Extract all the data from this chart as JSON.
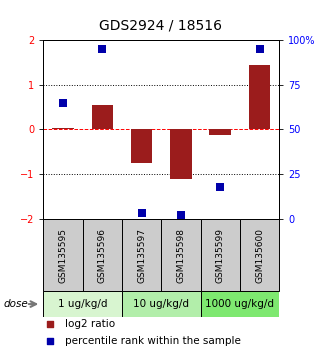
{
  "title": "GDS2924 / 18516",
  "samples": [
    "GSM135595",
    "GSM135596",
    "GSM135597",
    "GSM135598",
    "GSM135599",
    "GSM135600"
  ],
  "log2_ratio": [
    0.02,
    0.55,
    -0.75,
    -1.1,
    -0.12,
    1.45
  ],
  "percentile_rank": [
    65,
    95,
    3,
    2,
    18,
    95
  ],
  "groups": [
    {
      "label": "1 ug/kg/d",
      "samples": [
        0,
        1
      ],
      "color": "#d8f5d0"
    },
    {
      "label": "10 ug/kg/d",
      "samples": [
        2,
        3
      ],
      "color": "#b2eeaa"
    },
    {
      "label": "1000 ug/kg/d",
      "samples": [
        4,
        5
      ],
      "color": "#7ee870"
    }
  ],
  "bar_color": "#9B1C1C",
  "dot_color": "#0000AA",
  "ylim_log2": [
    -2.0,
    2.0
  ],
  "yticks_left": [
    -2,
    -1,
    0,
    1,
    2
  ],
  "yticks_right_labels": [
    "0",
    "25",
    "50",
    "75",
    "100%"
  ],
  "bar_width": 0.55,
  "dot_size": 35,
  "label_log2": "log2 ratio",
  "label_pct": "percentile rank within the sample",
  "dose_label": "dose",
  "sample_box_color": "#cccccc",
  "title_fontsize": 10,
  "tick_fontsize": 7,
  "legend_fontsize": 7.5,
  "group_label_fontsize": 7.5,
  "sample_label_fontsize": 6.5
}
